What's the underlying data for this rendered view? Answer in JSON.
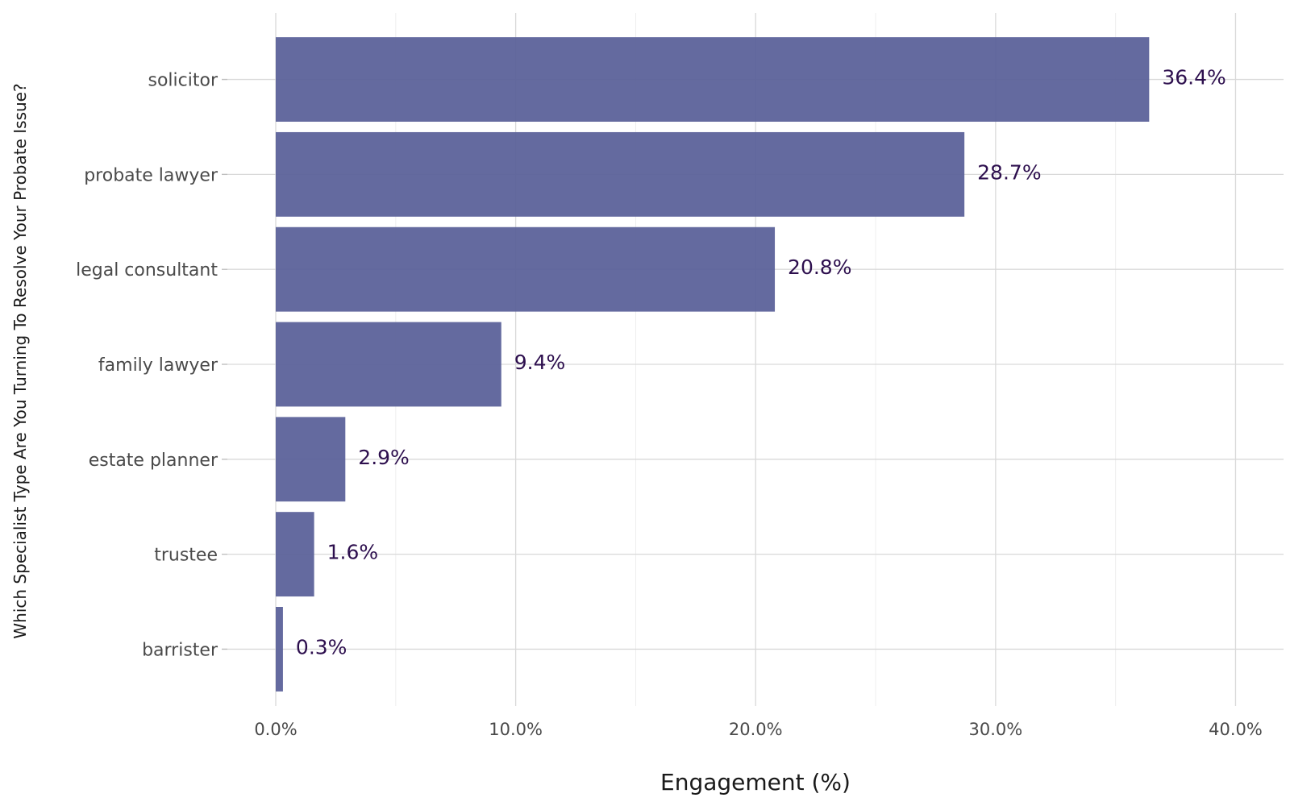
{
  "chart_data": {
    "type": "bar",
    "orientation": "horizontal",
    "categories": [
      "solicitor",
      "probate lawyer",
      "legal consultant",
      "family lawyer",
      "estate planner",
      "trustee",
      "barrister"
    ],
    "values": [
      36.4,
      28.7,
      20.8,
      9.4,
      2.9,
      1.6,
      0.3
    ],
    "data_labels": [
      "36.4%",
      "28.7%",
      "20.8%",
      "9.4%",
      "2.9%",
      "1.6%",
      "0.3%"
    ],
    "xlabel": "Engagement (%)",
    "ylabel": "Which Specialist Type Are You Turning To Resolve Your Probate Issue?",
    "xlim": [
      0,
      42
    ],
    "x_ticks": [
      0,
      10,
      20,
      30,
      40
    ],
    "x_tick_labels": [
      "0.0%",
      "10.0%",
      "20.0%",
      "30.0%",
      "40.0%"
    ],
    "grid": true,
    "bar_color": "#5a6199"
  }
}
